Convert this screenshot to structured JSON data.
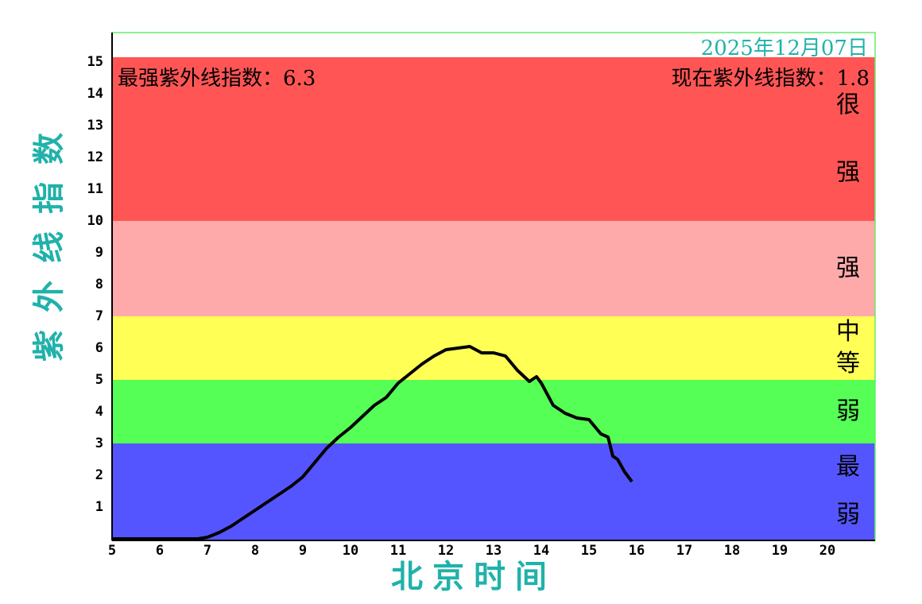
{
  "chart_data": {
    "type": "line",
    "date": "2025年12月07日",
    "max_label": "最强紫外线指数：6.3",
    "current_label": "现在紫外线指数：1.8",
    "xlabel": "北京时间",
    "ylabel": "紫外线指数",
    "xlim": [
      5,
      21
    ],
    "ylim": [
      0,
      16
    ],
    "xticks": [
      5,
      6,
      7,
      8,
      9,
      10,
      11,
      12,
      13,
      14,
      15,
      16,
      17,
      18,
      19,
      20
    ],
    "yticks": [
      1,
      2,
      3,
      4,
      5,
      6,
      7,
      8,
      9,
      10,
      11,
      12,
      13,
      14,
      15
    ],
    "bands": [
      {
        "from": 0,
        "to": 3,
        "color": "#5555ff",
        "label": "最弱"
      },
      {
        "from": 3,
        "to": 5,
        "color": "#55ff55",
        "label": "弱"
      },
      {
        "from": 5,
        "to": 7,
        "color": "#ffff55",
        "label": "中等"
      },
      {
        "from": 7,
        "to": 10,
        "color": "#ffaaaa",
        "label": "强"
      },
      {
        "from": 10,
        "to": 15.15,
        "color": "#ff5555",
        "label": "很强"
      }
    ],
    "series": [
      {
        "color": "#000000",
        "x": [
          5,
          5.5,
          6,
          6.5,
          6.8,
          7,
          7.25,
          7.5,
          7.75,
          8,
          8.25,
          8.5,
          8.75,
          9,
          9.25,
          9.5,
          9.75,
          10,
          10.25,
          10.5,
          10.75,
          11,
          11.25,
          11.5,
          11.75,
          12,
          12.25,
          12.5,
          12.75,
          13,
          13.25,
          13.5,
          13.75,
          13.9,
          14,
          14.25,
          14.5,
          14.75,
          15,
          15.25,
          15.4,
          15.5,
          15.6,
          15.75,
          15.9
        ],
        "values": [
          0,
          0,
          0,
          0,
          0,
          0.05,
          0.2,
          0.4,
          0.65,
          0.9,
          1.15,
          1.4,
          1.65,
          1.95,
          2.4,
          2.85,
          3.2,
          3.5,
          3.85,
          4.2,
          4.45,
          4.9,
          5.2,
          5.5,
          5.75,
          5.95,
          6.0,
          6.05,
          5.85,
          5.85,
          5.75,
          5.3,
          4.95,
          5.1,
          4.9,
          4.2,
          3.95,
          3.8,
          3.75,
          3.3,
          3.2,
          2.6,
          2.5,
          2.1,
          1.8
        ]
      }
    ]
  }
}
